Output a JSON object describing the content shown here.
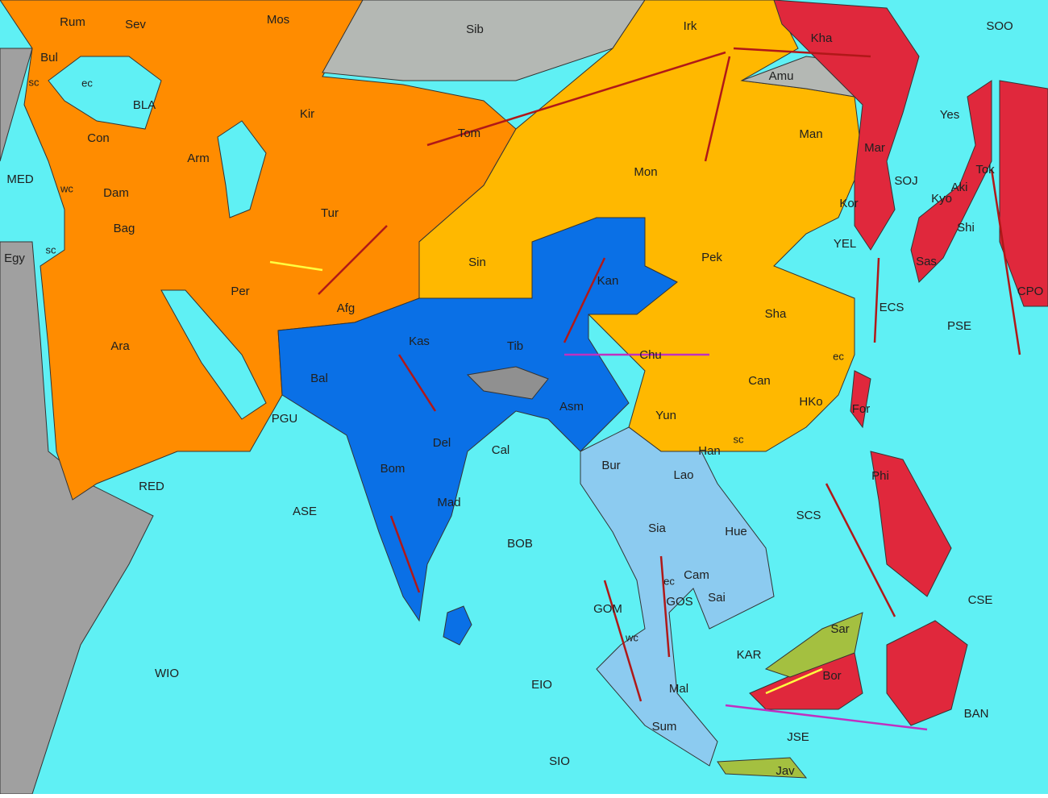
{
  "labels": [
    "Rum",
    "Sev",
    "Mos",
    "Sib",
    "Irk",
    "Kha",
    "SOO",
    "Bul",
    "sc",
    "ec",
    "BLA",
    "Con",
    "Amu",
    "Kir",
    "Tom",
    "Arm",
    "Man",
    "Mar",
    "Yes",
    "MED",
    "wc",
    "Dam",
    "Tur",
    "Mon",
    "SOJ",
    "Tok",
    "Kyo",
    "Aki",
    "Kor",
    "Shi",
    "Egy",
    "Bag",
    "sc",
    "Sin",
    "Pek",
    "YEL",
    "Sas",
    "Per",
    "Kan",
    "CPO",
    "Afg",
    "ECS",
    "Sha",
    "Ara",
    "Kas",
    "Tib",
    "Chu",
    "PSE",
    "ec",
    "Bal",
    "Can",
    "Asm",
    "HKo",
    "For",
    "PGU",
    "Yun",
    "Han",
    "sc",
    "Del",
    "Cal",
    "Bur",
    "Lao",
    "Phi",
    "RED",
    "ASE",
    "Bom",
    "Mad",
    "SCS",
    "Hue",
    "Sia",
    "BOB",
    "Cam",
    "ec",
    "GOS",
    "Sai",
    "GOM",
    "CSE",
    "wc",
    "Sar",
    "KAR",
    "Bor",
    "WIO",
    "EIO",
    "Mal",
    "BAN",
    "Sum",
    "JSE",
    "SIO",
    "Jav"
  ]
}
